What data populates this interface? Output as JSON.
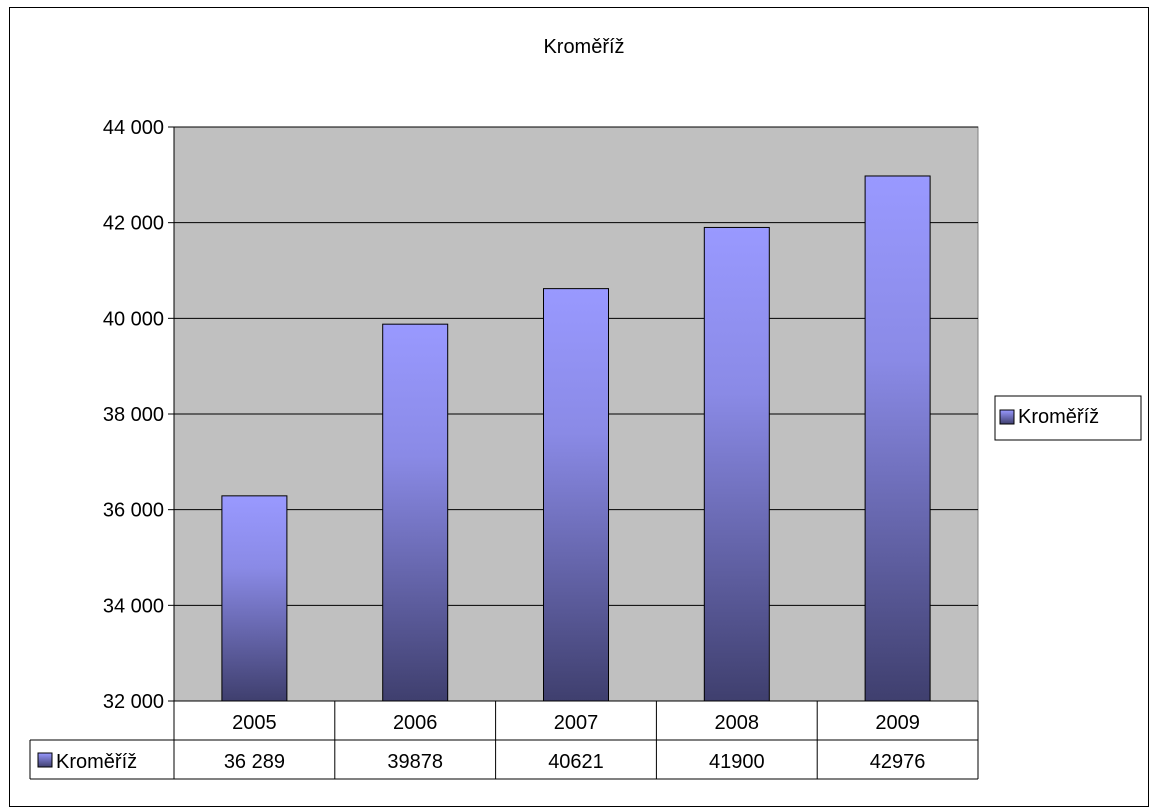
{
  "chart_data": {
    "type": "bar",
    "title": "Kroměříž",
    "categories": [
      "2005",
      "2006",
      "2007",
      "2008",
      "2009"
    ],
    "series": [
      {
        "name": "Kroměříž",
        "values": [
          36289,
          39878,
          40621,
          41900,
          42976
        ],
        "value_labels": [
          "36 289",
          "39878",
          "40621",
          "41900",
          "42976"
        ]
      }
    ],
    "ylim": [
      32000,
      44000
    ],
    "y_ticks": [
      32000,
      34000,
      36000,
      38000,
      40000,
      42000,
      44000
    ],
    "y_tick_labels": [
      "32 000",
      "34 000",
      "36 000",
      "38 000",
      "40 000",
      "42 000",
      "44 000"
    ],
    "grid": true,
    "legend_position": "right",
    "data_table": true,
    "colors": {
      "plot_background": "#c0c0c0",
      "bar_top": "#9999ff",
      "bar_bottom": "#3f3f6e"
    }
  }
}
